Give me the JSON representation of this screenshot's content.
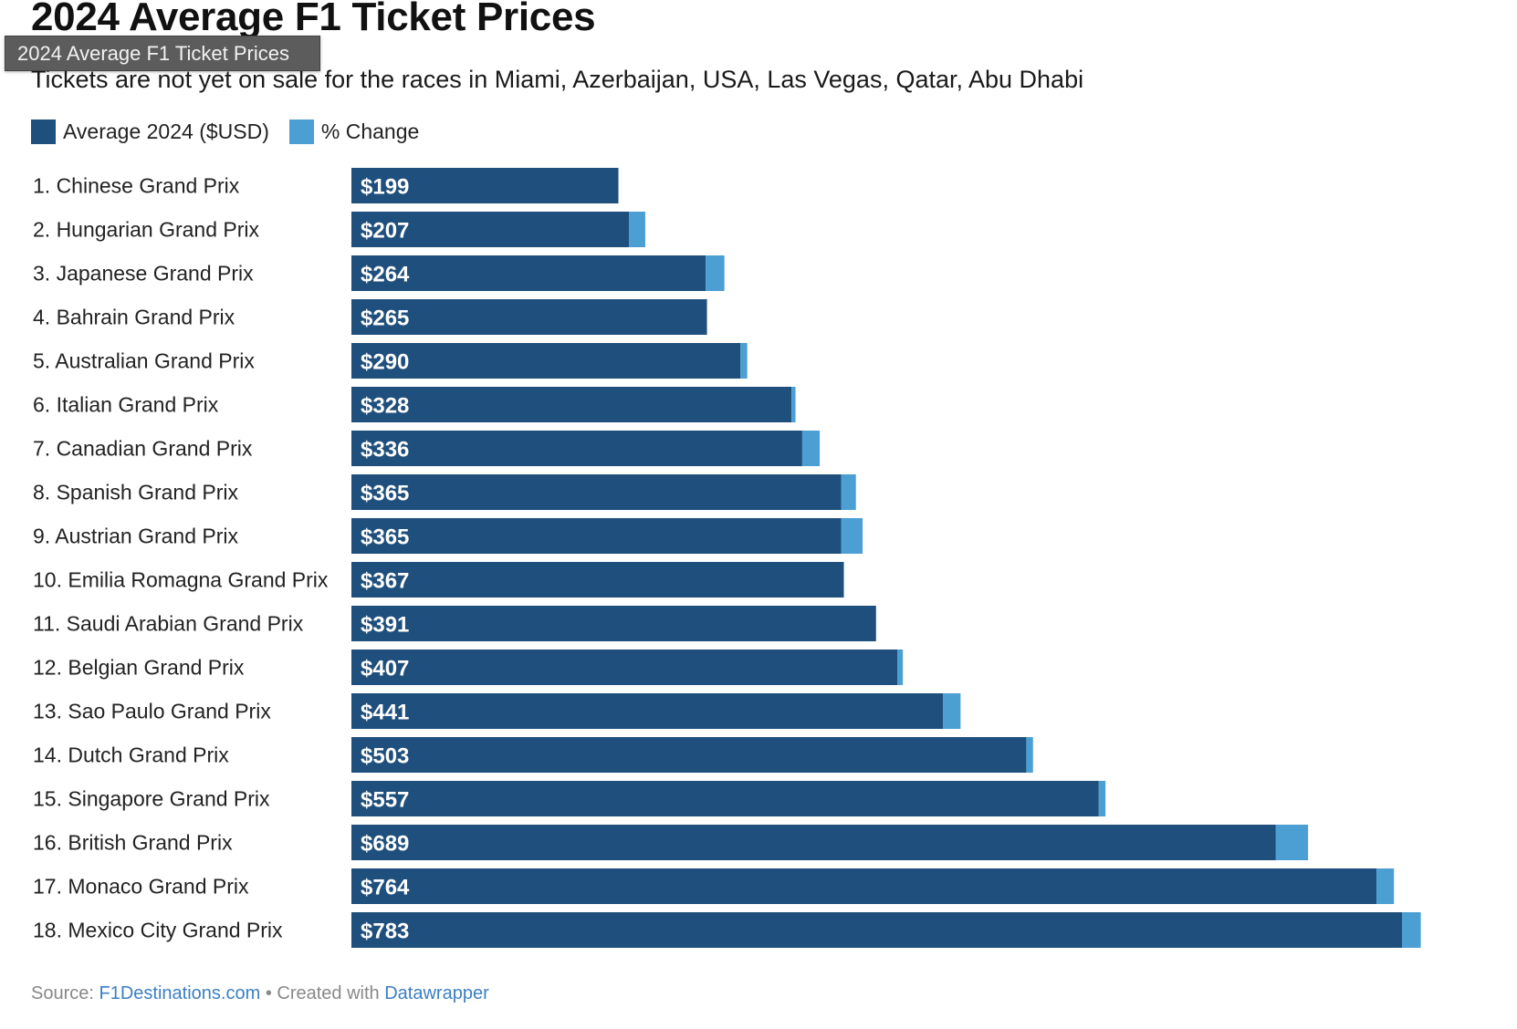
{
  "header": {
    "title": "2024 Average F1 Ticket Prices",
    "tooltip": "2024 Average F1 Ticket Prices",
    "subtitle": "Tickets are not yet on sale for the races in Miami, Azerbaijan, USA, Las Vegas, Qatar, Abu Dhabi"
  },
  "legend": {
    "items": [
      {
        "label": "Average 2024 ($USD)",
        "color": "#1f4f7c"
      },
      {
        "label": "% Change",
        "color": "#4b9fd3"
      }
    ]
  },
  "footer": {
    "source_prefix": "Source:",
    "source_link": "F1Destinations.com",
    "separator": "•",
    "created_prefix": "Created with",
    "created_link": "Datawrapper"
  },
  "chart_data": {
    "type": "bar",
    "orientation": "horizontal",
    "stacked": true,
    "title": "2024 Average F1 Ticket Prices",
    "subtitle": "Tickets are not yet on sale for the races in Miami, Azerbaijan, USA, Las Vegas, Qatar, Abu Dhabi",
    "xlabel": "",
    "ylabel": "",
    "grid": false,
    "legend_position": "top-left",
    "xlim": [
      0,
      800
    ],
    "categories": [
      "1. Chinese Grand Prix",
      "2. Hungarian Grand Prix",
      "3. Japanese Grand Prix",
      "4. Bahrain Grand Prix",
      "5. Australian Grand Prix",
      "6. Italian Grand Prix",
      "7. Canadian Grand Prix",
      "8. Spanish Grand Prix",
      "9. Austrian Grand Prix",
      "10. Emilia Romagna Grand Prix",
      "11. Saudi Arabian Grand Prix",
      "12. Belgian Grand Prix",
      "13. Sao Paulo Grand Prix",
      "14. Dutch Grand Prix",
      "15. Singapore Grand Prix",
      "16. British Grand Prix",
      "17. Monaco Grand Prix",
      "18. Mexico City Grand Prix"
    ],
    "series": [
      {
        "name": "Average 2024 ($USD)",
        "color": "#1f4f7c",
        "values": [
          199,
          207,
          264,
          265,
          290,
          328,
          336,
          365,
          365,
          367,
          391,
          407,
          441,
          503,
          557,
          689,
          764,
          783
        ],
        "data_labels": [
          "$199",
          "$207",
          "$264",
          "$265",
          "$290",
          "$328",
          "$336",
          "$365",
          "$365",
          "$367",
          "$391",
          "$407",
          "$441",
          "$503",
          "$557",
          "$689",
          "$764",
          "$783"
        ]
      },
      {
        "name": "% Change",
        "color": "#4b9fd3",
        "values": [
          0,
          12,
          14,
          0,
          5,
          3,
          13,
          11,
          16,
          0,
          0,
          4,
          13,
          5,
          5,
          24,
          13,
          14
        ]
      }
    ]
  }
}
